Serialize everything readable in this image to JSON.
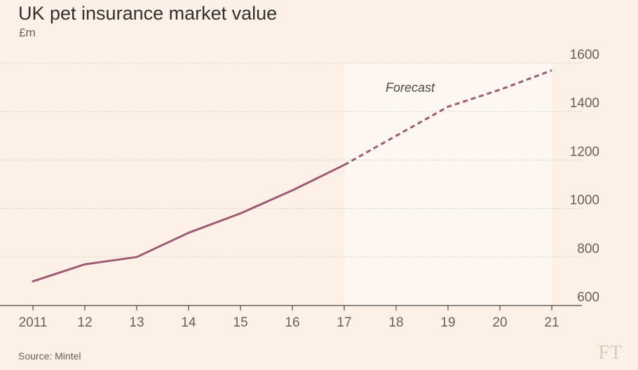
{
  "chart_data": {
    "type": "line",
    "title": "UK pet insurance market value",
    "unit": "£m",
    "source": "Source: Mintel",
    "brand": "FT",
    "x": [
      "2011",
      "12",
      "13",
      "14",
      "15",
      "16",
      "17",
      "18",
      "19",
      "20",
      "21"
    ],
    "series": [
      {
        "values": [
          700,
          770,
          800,
          900,
          980,
          1075,
          1180,
          1300,
          1420,
          1490,
          1570
        ],
        "actual_until_index": 6,
        "forecast_from_index": 6,
        "color": "#9e5c73"
      }
    ],
    "forecast_label": "Forecast",
    "forecast_shade_color": "#fef7f1",
    "ylim": [
      600,
      1600
    ],
    "yticks": [
      600,
      800,
      1000,
      1200,
      1400,
      1600
    ],
    "y_axis_position": "right",
    "grid": "horizontal-dotted"
  }
}
